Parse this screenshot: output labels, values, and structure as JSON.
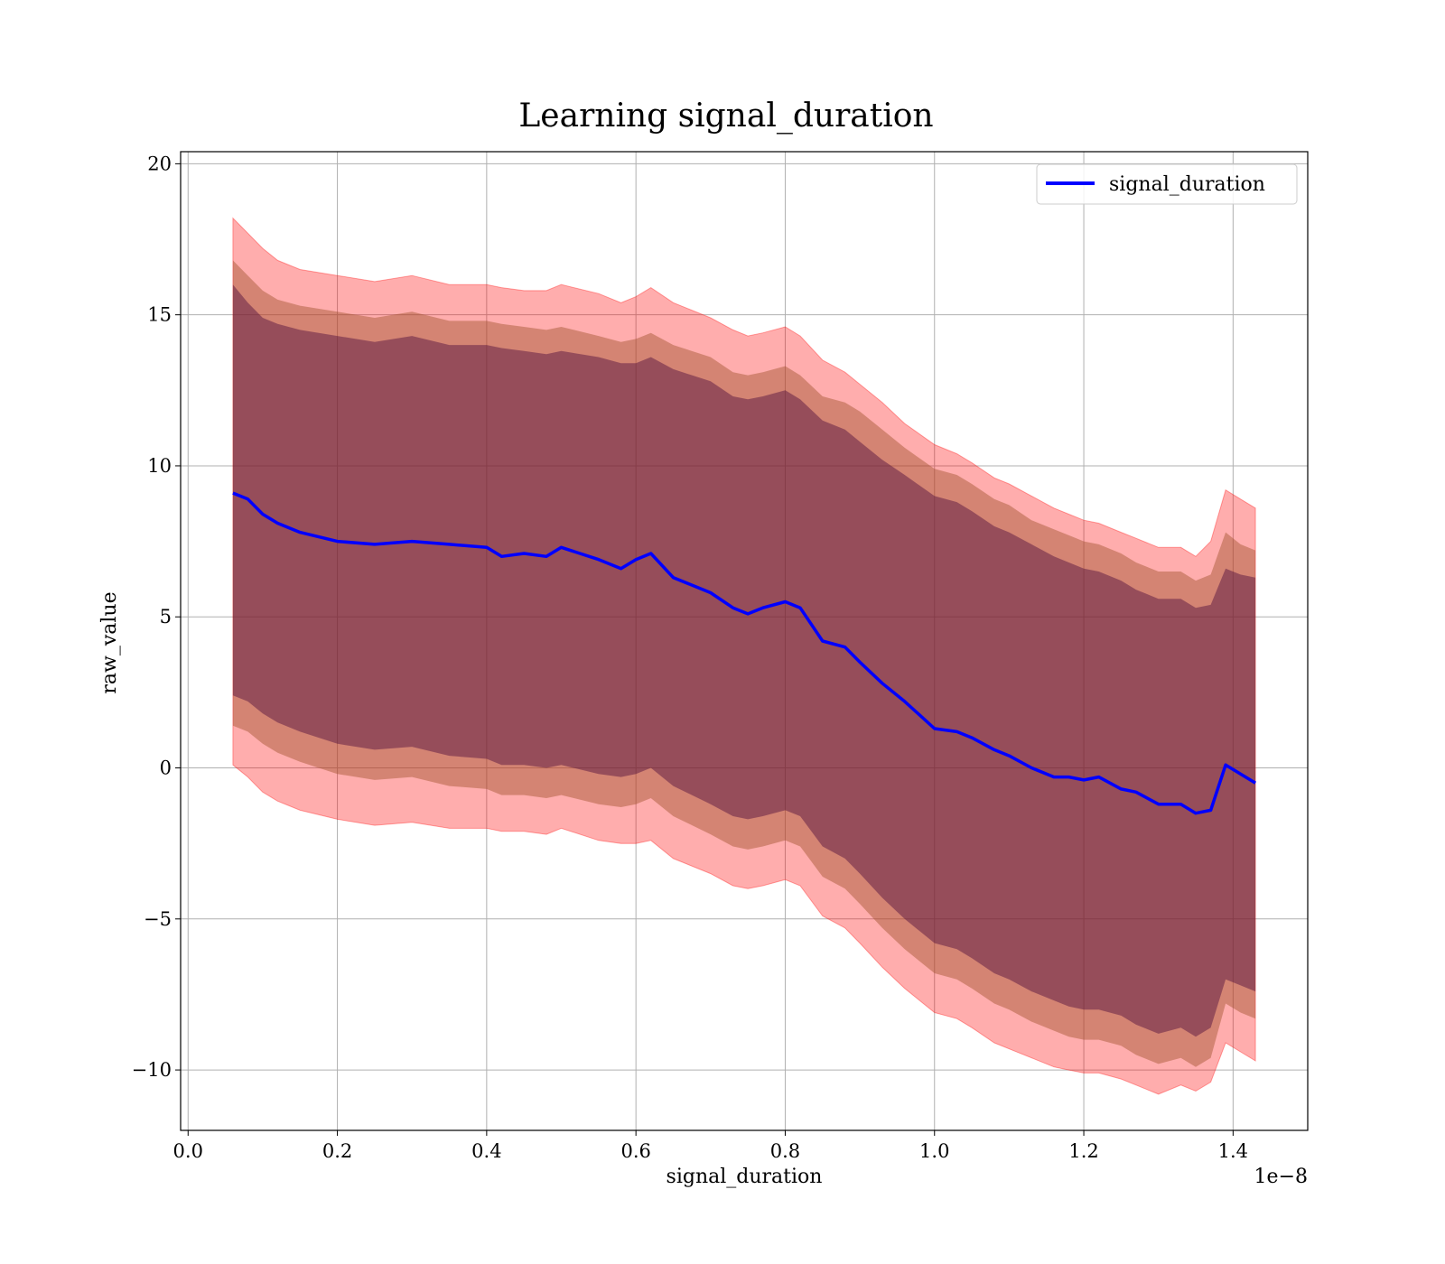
{
  "chart_data": {
    "type": "line",
    "title": "Learning signal_duration",
    "xlabel": "signal_duration",
    "ylabel": "raw_value",
    "x_offset_text": "1e−8",
    "xlim": [
      -0.01,
      1.5
    ],
    "ylim": [
      -12,
      20.4
    ],
    "xticks": [
      0.0,
      0.2,
      0.4,
      0.6,
      0.8,
      1.0,
      1.2,
      1.4
    ],
    "xtick_labels": [
      "0.0",
      "0.2",
      "0.4",
      "0.6",
      "0.8",
      "1.0",
      "1.2",
      "1.4"
    ],
    "yticks": [
      -10,
      -5,
      0,
      5,
      10,
      15,
      20
    ],
    "ytick_labels": [
      "−10",
      "−5",
      "0",
      "5",
      "10",
      "15",
      "20"
    ],
    "grid": true,
    "legend_position": "top-right",
    "colors": {
      "line": "#0000ff",
      "band_outer": "#ff0000",
      "band_middle": "#a0522d",
      "band_inner": "#4b0a3c"
    },
    "series": [
      {
        "name": "signal_duration",
        "x": [
          0.06,
          0.08,
          0.1,
          0.12,
          0.15,
          0.2,
          0.25,
          0.3,
          0.35,
          0.4,
          0.42,
          0.45,
          0.48,
          0.5,
          0.55,
          0.58,
          0.6,
          0.62,
          0.65,
          0.7,
          0.73,
          0.75,
          0.77,
          0.8,
          0.82,
          0.85,
          0.88,
          0.9,
          0.93,
          0.96,
          1.0,
          1.03,
          1.05,
          1.08,
          1.1,
          1.13,
          1.16,
          1.18,
          1.2,
          1.22,
          1.25,
          1.27,
          1.3,
          1.33,
          1.35,
          1.37,
          1.39,
          1.41,
          1.43
        ],
        "y": [
          9.1,
          8.9,
          8.4,
          8.1,
          7.8,
          7.5,
          7.4,
          7.5,
          7.4,
          7.3,
          7.0,
          7.1,
          7.0,
          7.3,
          6.9,
          6.6,
          6.9,
          7.1,
          6.3,
          5.8,
          5.3,
          5.1,
          5.3,
          5.5,
          5.3,
          4.2,
          4.0,
          3.5,
          2.8,
          2.2,
          1.3,
          1.2,
          1.0,
          0.6,
          0.4,
          0.0,
          -0.3,
          -0.3,
          -0.4,
          -0.3,
          -0.7,
          -0.8,
          -1.2,
          -1.2,
          -1.5,
          -1.4,
          0.1,
          -0.2,
          -0.5
        ],
        "band_inner_upper": [
          16.0,
          15.4,
          14.9,
          14.7,
          14.5,
          14.3,
          14.1,
          14.3,
          14.0,
          14.0,
          13.9,
          13.8,
          13.7,
          13.8,
          13.6,
          13.4,
          13.4,
          13.6,
          13.2,
          12.8,
          12.3,
          12.2,
          12.3,
          12.5,
          12.2,
          11.5,
          11.2,
          10.8,
          10.2,
          9.7,
          9.0,
          8.8,
          8.5,
          8.0,
          7.8,
          7.4,
          7.0,
          6.8,
          6.6,
          6.5,
          6.2,
          5.9,
          5.6,
          5.6,
          5.3,
          5.4,
          6.6,
          6.4,
          6.3
        ],
        "band_inner_lower": [
          2.4,
          2.2,
          1.8,
          1.5,
          1.2,
          0.8,
          0.6,
          0.7,
          0.4,
          0.3,
          0.1,
          0.1,
          0.0,
          0.1,
          -0.2,
          -0.3,
          -0.2,
          0.0,
          -0.6,
          -1.2,
          -1.6,
          -1.7,
          -1.6,
          -1.4,
          -1.6,
          -2.6,
          -3.0,
          -3.5,
          -4.3,
          -5.0,
          -5.8,
          -6.0,
          -6.3,
          -6.8,
          -7.0,
          -7.4,
          -7.7,
          -7.9,
          -8.0,
          -8.0,
          -8.2,
          -8.5,
          -8.8,
          -8.6,
          -8.9,
          -8.6,
          -7.0,
          -7.2,
          -7.4
        ],
        "band_middle_upper": [
          16.8,
          16.3,
          15.8,
          15.5,
          15.3,
          15.1,
          14.9,
          15.1,
          14.8,
          14.8,
          14.7,
          14.6,
          14.5,
          14.6,
          14.3,
          14.1,
          14.2,
          14.4,
          14.0,
          13.6,
          13.1,
          13.0,
          13.1,
          13.3,
          13.0,
          12.3,
          12.1,
          11.8,
          11.2,
          10.6,
          9.9,
          9.7,
          9.4,
          8.9,
          8.7,
          8.2,
          7.9,
          7.7,
          7.5,
          7.4,
          7.1,
          6.8,
          6.5,
          6.5,
          6.2,
          6.4,
          7.8,
          7.4,
          7.2
        ],
        "band_middle_lower": [
          1.4,
          1.2,
          0.8,
          0.5,
          0.2,
          -0.2,
          -0.4,
          -0.3,
          -0.6,
          -0.7,
          -0.9,
          -0.9,
          -1.0,
          -0.9,
          -1.2,
          -1.3,
          -1.2,
          -1.0,
          -1.6,
          -2.2,
          -2.6,
          -2.7,
          -2.6,
          -2.4,
          -2.6,
          -3.6,
          -4.0,
          -4.5,
          -5.3,
          -6.0,
          -6.8,
          -7.0,
          -7.3,
          -7.8,
          -8.0,
          -8.4,
          -8.7,
          -8.9,
          -9.0,
          -9.0,
          -9.2,
          -9.5,
          -9.8,
          -9.6,
          -9.9,
          -9.6,
          -7.8,
          -8.1,
          -8.3
        ],
        "band_outer_upper": [
          18.2,
          17.7,
          17.2,
          16.8,
          16.5,
          16.3,
          16.1,
          16.3,
          16.0,
          16.0,
          15.9,
          15.8,
          15.8,
          16.0,
          15.7,
          15.4,
          15.6,
          15.9,
          15.4,
          14.9,
          14.5,
          14.3,
          14.4,
          14.6,
          14.3,
          13.5,
          13.1,
          12.7,
          12.1,
          11.4,
          10.7,
          10.4,
          10.1,
          9.6,
          9.4,
          9.0,
          8.6,
          8.4,
          8.2,
          8.1,
          7.8,
          7.6,
          7.3,
          7.3,
          7.0,
          7.5,
          9.2,
          8.9,
          8.6
        ],
        "band_outer_lower": [
          0.1,
          -0.3,
          -0.8,
          -1.1,
          -1.4,
          -1.7,
          -1.9,
          -1.8,
          -2.0,
          -2.0,
          -2.1,
          -2.1,
          -2.2,
          -2.0,
          -2.4,
          -2.5,
          -2.5,
          -2.4,
          -3.0,
          -3.5,
          -3.9,
          -4.0,
          -3.9,
          -3.7,
          -3.9,
          -4.9,
          -5.3,
          -5.8,
          -6.6,
          -7.3,
          -8.1,
          -8.3,
          -8.6,
          -9.1,
          -9.3,
          -9.6,
          -9.9,
          -10.0,
          -10.1,
          -10.1,
          -10.3,
          -10.5,
          -10.8,
          -10.5,
          -10.7,
          -10.4,
          -9.1,
          -9.4,
          -9.7
        ]
      }
    ]
  }
}
